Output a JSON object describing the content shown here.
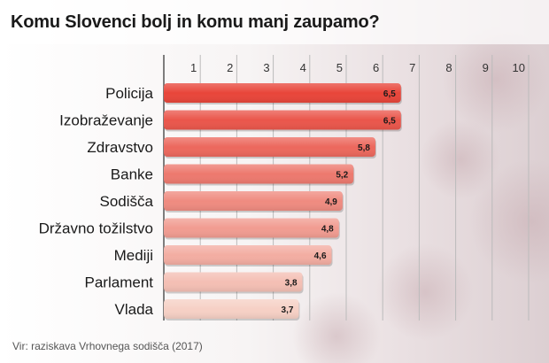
{
  "title": "Komu Slovenci bolj in komu manj zaupamo?",
  "source": "Vir: raziskava Vrhovnega sodišča (2017)",
  "colors": {
    "bar_top": "#e8453a",
    "bar_bottom": "#f6d0c5",
    "axis": "#555555",
    "grid": "#bbbbbb"
  },
  "chart_data": {
    "type": "bar",
    "orientation": "horizontal",
    "categories": [
      "Policija",
      "Izobraževanje",
      "Zdravstvo",
      "Banke",
      "Sodišča",
      "Državno tožilstvo",
      "Mediji",
      "Parlament",
      "Vlada"
    ],
    "values": [
      6.5,
      6.5,
      5.8,
      5.2,
      4.9,
      4.8,
      4.6,
      3.8,
      3.7
    ],
    "value_labels": [
      "6,5",
      "6,5",
      "5,8",
      "5,2",
      "4,9",
      "4,8",
      "4,6",
      "3,8",
      "3,7"
    ],
    "xticks": [
      1,
      2,
      3,
      4,
      5,
      6,
      7,
      8,
      9,
      10
    ],
    "xlim": [
      0,
      10
    ],
    "grid": true,
    "title": "Komu Slovenci bolj in komu manj zaupamo?"
  }
}
